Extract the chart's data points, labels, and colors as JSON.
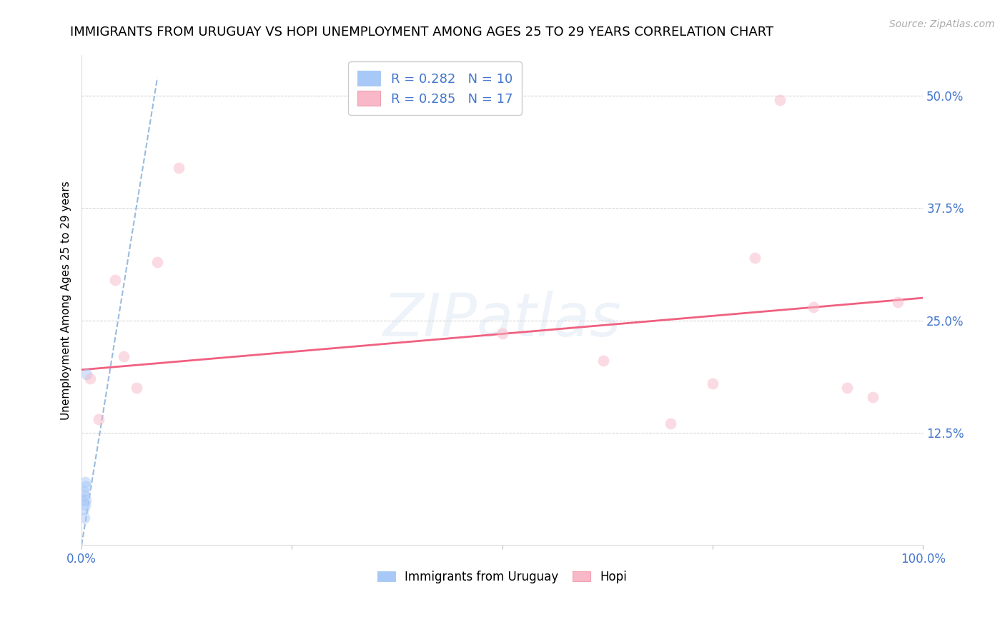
{
  "title": "IMMIGRANTS FROM URUGUAY VS HOPI UNEMPLOYMENT AMONG AGES 25 TO 29 YEARS CORRELATION CHART",
  "source": "Source: ZipAtlas.com",
  "ylabel": "Unemployment Among Ages 25 to 29 years",
  "yticks": [
    0.0,
    0.125,
    0.25,
    0.375,
    0.5
  ],
  "ytick_labels": [
    "",
    "12.5%",
    "25.0%",
    "37.5%",
    "50.0%"
  ],
  "xlim": [
    0.0,
    1.0
  ],
  "ylim": [
    0.0,
    0.545
  ],
  "watermark_text": "ZIPatlas",
  "legend1_label": "R = 0.282   N = 10",
  "legend2_label": "R = 0.285   N = 17",
  "legend1_color": "#a8c8f8",
  "legend2_color": "#f8b8c8",
  "blue_scatter_x": [
    0.001,
    0.002,
    0.002,
    0.003,
    0.003,
    0.004,
    0.004,
    0.005,
    0.005,
    0.006
  ],
  "blue_scatter_y": [
    0.05,
    0.04,
    0.06,
    0.03,
    0.055,
    0.045,
    0.07,
    0.05,
    0.065,
    0.19
  ],
  "pink_scatter_x": [
    0.01,
    0.02,
    0.04,
    0.05,
    0.065,
    0.09,
    0.115,
    0.5,
    0.62,
    0.7,
    0.75,
    0.8,
    0.83,
    0.87,
    0.91,
    0.94,
    0.97
  ],
  "pink_scatter_y": [
    0.185,
    0.14,
    0.295,
    0.21,
    0.175,
    0.315,
    0.42,
    0.235,
    0.205,
    0.135,
    0.18,
    0.32,
    0.495,
    0.265,
    0.175,
    0.165,
    0.27
  ],
  "blue_line_x": [
    0.0,
    0.09
  ],
  "blue_line_y": [
    0.0,
    0.52
  ],
  "pink_line_x": [
    0.0,
    1.0
  ],
  "pink_line_y": [
    0.195,
    0.275
  ],
  "dot_size": 130,
  "dot_alpha": 0.5,
  "blue_line_color": "#99bbdd",
  "pink_line_color": "#f06080",
  "axis_color": "#4477cc",
  "grid_color": "#cccccc",
  "title_fontsize": 13,
  "label_fontsize": 11,
  "tick_fontsize": 12,
  "source_fontsize": 10,
  "legend_fontsize": 13,
  "watermark_fontsize": 60,
  "watermark_color": "#ccddee",
  "watermark_alpha": 0.35
}
